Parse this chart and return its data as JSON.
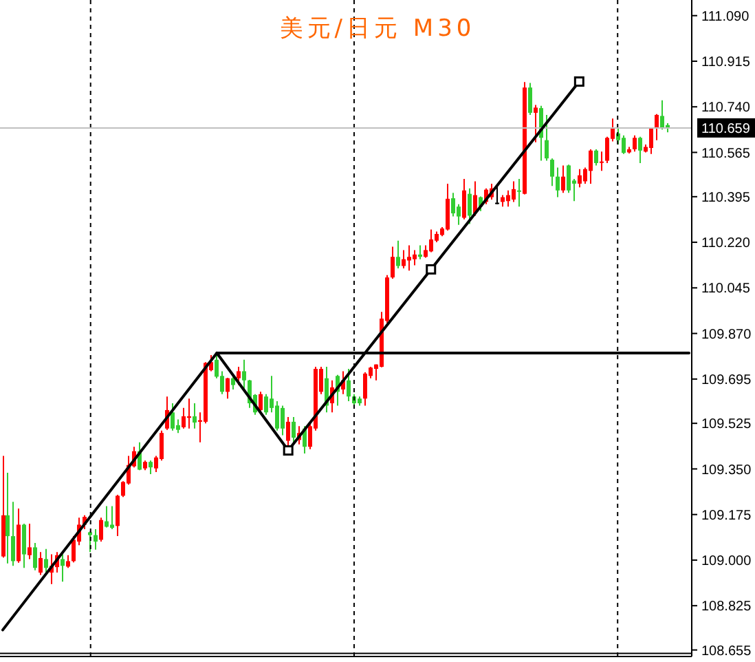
{
  "chart_data": {
    "type": "candlestick",
    "title": "美元/日元 M30",
    "categories": [
      null,
      null,
      null,
      null,
      null,
      null,
      null,
      null,
      null,
      null,
      null,
      null,
      null,
      null,
      null,
      null,
      null,
      null,
      null,
      null,
      null,
      null,
      null,
      null,
      null,
      null,
      null,
      null,
      null,
      null,
      null,
      null,
      null,
      null,
      null,
      null,
      null,
      null,
      null,
      null,
      null,
      null,
      null,
      null,
      null,
      null,
      null,
      null,
      null,
      null,
      null,
      null,
      null,
      null,
      null,
      null,
      null,
      null,
      null,
      null,
      null,
      null,
      null,
      null,
      null,
      null,
      null,
      null,
      null,
      null,
      null,
      null,
      null,
      null,
      null,
      null,
      null,
      null,
      null,
      null,
      null,
      null,
      null,
      null,
      null,
      null,
      null,
      null,
      null,
      null,
      null,
      null,
      null,
      null,
      null,
      null,
      null,
      null,
      null,
      null,
      null,
      null,
      null,
      null,
      null,
      null,
      null,
      null,
      null,
      null,
      null,
      null,
      null,
      null,
      null,
      null,
      null,
      null,
      null,
      null,
      null,
      null,
      null,
      null,
      null,
      null
    ],
    "ohlc": [
      [
        109.014,
        109.4,
        109.01,
        109.172
      ],
      [
        109.172,
        109.335,
        108.987,
        109.092
      ],
      [
        109.092,
        109.224,
        108.978,
        108.996
      ],
      [
        108.996,
        109.198,
        108.99,
        109.136
      ],
      [
        109.136,
        109.14,
        108.97,
        109.022
      ],
      [
        109.019,
        109.14,
        109.004,
        109.049
      ],
      [
        109.049,
        109.066,
        108.961,
        108.97
      ],
      [
        108.952,
        109.031,
        108.943,
        109.008
      ],
      [
        109.004,
        109.043,
        108.943,
        108.97
      ],
      [
        108.952,
        109.022,
        108.908,
        108.978
      ],
      [
        108.973,
        109.031,
        108.952,
        109.019
      ],
      [
        109.004,
        109.022,
        108.917,
        108.978
      ],
      [
        108.975,
        109.019,
        108.97,
        108.996
      ],
      [
        108.996,
        109.092,
        108.991,
        109.078
      ],
      [
        109.071,
        109.163,
        109.057,
        109.136
      ],
      [
        109.136,
        109.172,
        109.119,
        109.166
      ],
      [
        109.107,
        109.11,
        109.031,
        109.096
      ],
      [
        109.096,
        109.119,
        109.04,
        109.071
      ],
      [
        109.078,
        109.163,
        109.071,
        109.154
      ],
      [
        109.149,
        109.207,
        109.125,
        109.128
      ],
      [
        109.136,
        109.207,
        109.119,
        109.124
      ],
      [
        109.131,
        109.251,
        109.092,
        109.247
      ],
      [
        109.247,
        109.303,
        109.242,
        109.3
      ],
      [
        109.294,
        109.4,
        109.29,
        109.365
      ],
      [
        109.36,
        109.435,
        109.356,
        109.418
      ],
      [
        109.418,
        109.452,
        109.345,
        109.347
      ],
      [
        109.352,
        109.382,
        109.345,
        109.377
      ],
      [
        109.377,
        109.382,
        109.33,
        109.356
      ],
      [
        109.352,
        109.4,
        109.338,
        109.394
      ],
      [
        109.388,
        109.497,
        109.382,
        109.488
      ],
      [
        109.505,
        109.628,
        109.5,
        109.576
      ],
      [
        109.567,
        109.602,
        109.497,
        109.505
      ],
      [
        109.518,
        109.54,
        109.488,
        109.5
      ],
      [
        109.51,
        109.584,
        109.505,
        109.552
      ],
      [
        109.546,
        109.62,
        109.505,
        109.552
      ],
      [
        109.552,
        109.602,
        109.505,
        109.528
      ],
      [
        109.531,
        109.567,
        109.452,
        109.537
      ],
      [
        109.531,
        109.76,
        109.525,
        109.757
      ],
      [
        109.729,
        109.787,
        109.725,
        109.76
      ],
      [
        109.769,
        109.787,
        109.698,
        109.704
      ],
      [
        109.707,
        109.725,
        109.637,
        109.646
      ],
      [
        109.646,
        109.7,
        109.62,
        109.698
      ],
      [
        109.698,
        109.707,
        109.655,
        109.672
      ],
      [
        109.698,
        109.742,
        109.672,
        109.725
      ],
      [
        109.725,
        109.769,
        109.655,
        109.69
      ],
      [
        109.69,
        109.692,
        109.584,
        109.602
      ],
      [
        109.634,
        109.637,
        109.558,
        109.567
      ],
      [
        109.576,
        109.646,
        109.567,
        109.637
      ],
      [
        109.628,
        109.637,
        109.558,
        109.567
      ],
      [
        109.62,
        109.707,
        109.567,
        109.584
      ],
      [
        109.593,
        109.61,
        109.497,
        109.505
      ],
      [
        109.584,
        109.593,
        109.479,
        109.505
      ],
      [
        109.458,
        109.549,
        109.426,
        109.531
      ],
      [
        109.531,
        109.549,
        109.452,
        109.47
      ],
      [
        109.461,
        109.514,
        109.444,
        109.488
      ],
      [
        109.505,
        109.514,
        109.409,
        109.435
      ],
      [
        109.435,
        109.523,
        109.426,
        109.514
      ],
      [
        109.505,
        109.742,
        109.497,
        109.734
      ],
      [
        109.646,
        109.742,
        109.637,
        109.734
      ],
      [
        109.698,
        109.742,
        109.567,
        109.593
      ],
      [
        109.602,
        109.69,
        109.567,
        109.663
      ],
      [
        109.707,
        109.711,
        109.593,
        109.646
      ],
      [
        109.655,
        109.725,
        109.637,
        109.69
      ],
      [
        109.69,
        109.734,
        109.61,
        109.628
      ],
      [
        109.628,
        109.637,
        109.593,
        109.602
      ],
      [
        109.62,
        109.628,
        109.593,
        109.602
      ],
      [
        109.62,
        109.721,
        109.593,
        109.716
      ],
      [
        109.707,
        109.742,
        109.698,
        109.739
      ],
      [
        109.734,
        109.751,
        109.69,
        109.751
      ],
      [
        109.742,
        109.953,
        109.74,
        109.927
      ],
      [
        109.918,
        110.094,
        109.909,
        110.085
      ],
      [
        110.085,
        110.203,
        110.08,
        110.164
      ],
      [
        110.164,
        110.226,
        110.12,
        110.129
      ],
      [
        110.129,
        110.19,
        110.12,
        110.155
      ],
      [
        110.15,
        110.208,
        110.111,
        110.164
      ],
      [
        110.155,
        110.19,
        110.132,
        110.173
      ],
      [
        110.173,
        110.208,
        110.155,
        110.164
      ],
      [
        110.164,
        110.208,
        110.161,
        110.19
      ],
      [
        110.185,
        110.269,
        110.182,
        110.231
      ],
      [
        110.226,
        110.261,
        110.22,
        110.252
      ],
      [
        110.248,
        110.278,
        110.243,
        110.273
      ],
      [
        110.269,
        110.445,
        110.265,
        110.387
      ],
      [
        110.389,
        110.41,
        110.319,
        110.331
      ],
      [
        110.357,
        110.366,
        110.287,
        110.319
      ],
      [
        110.314,
        110.463,
        110.308,
        110.419
      ],
      [
        110.406,
        110.427,
        110.29,
        110.322
      ],
      [
        110.331,
        110.454,
        110.322,
        110.401
      ],
      [
        110.393,
        110.396,
        110.34,
        110.357
      ],
      [
        110.375,
        110.427,
        110.366,
        110.422
      ],
      [
        110.393,
        110.445,
        110.384,
        110.427
      ],
      [
        110.372,
        110.436,
        110.366,
        110.372
      ],
      [
        110.375,
        110.401,
        110.357,
        110.393
      ],
      [
        110.378,
        110.419,
        110.357,
        110.401
      ],
      [
        110.384,
        110.454,
        110.375,
        110.424
      ],
      [
        110.419,
        110.463,
        110.357,
        110.414
      ],
      [
        110.406,
        110.835,
        110.404,
        110.814
      ],
      [
        110.814,
        110.832,
        110.709,
        110.717
      ],
      [
        110.717,
        110.747,
        110.604,
        110.737
      ],
      [
        110.735,
        110.744,
        110.533,
        110.621
      ],
      [
        110.612,
        110.709,
        110.533,
        110.542
      ],
      [
        110.537,
        110.542,
        110.436,
        110.472
      ],
      [
        110.472,
        110.507,
        110.393,
        110.419
      ],
      [
        110.419,
        110.515,
        110.41,
        110.472
      ],
      [
        110.515,
        110.518,
        110.41,
        110.419
      ],
      [
        110.457,
        110.463,
        110.378,
        110.445
      ],
      [
        110.445,
        110.501,
        110.431,
        110.477
      ],
      [
        110.454,
        110.507,
        110.445,
        110.501
      ],
      [
        110.494,
        110.577,
        110.445,
        110.572
      ],
      [
        110.572,
        110.577,
        110.515,
        110.524
      ],
      [
        110.526,
        110.568,
        110.494,
        110.53
      ],
      [
        110.533,
        110.625,
        110.524,
        110.621
      ],
      [
        110.617,
        110.695,
        110.607,
        110.659
      ],
      [
        110.638,
        110.656,
        110.595,
        110.612
      ],
      [
        110.621,
        110.63,
        110.559,
        110.563
      ],
      [
        110.565,
        110.586,
        110.561,
        110.577
      ],
      [
        110.577,
        110.63,
        110.568,
        110.621
      ],
      [
        110.621,
        110.625,
        110.524,
        110.572
      ],
      [
        110.568,
        110.595,
        110.565,
        110.586
      ],
      [
        110.582,
        110.659,
        110.559,
        110.656
      ],
      [
        110.656,
        110.712,
        110.612,
        110.709
      ],
      [
        110.705,
        110.765,
        110.653,
        110.656
      ],
      [
        110.67,
        110.677,
        110.642,
        110.659
      ],
      null,
      null,
      null,
      null
    ],
    "colors": [
      "#ff0000",
      "#32cd32",
      "#32cd32",
      "#ff0000",
      "#32cd32",
      "#ff0000",
      "#32cd32",
      "#ff0000",
      "#32cd32",
      "#ff0000",
      "#ff0000",
      "#32cd32",
      "#ff0000",
      "#ff0000",
      "#ff0000",
      "#ff0000",
      "#32cd32",
      "#32cd32",
      "#ff0000",
      "#32cd32",
      "#32cd32",
      "#ff0000",
      "#ff0000",
      "#ff0000",
      "#ff0000",
      "#32cd32",
      "#ff0000",
      "#32cd32",
      "#ff0000",
      "#ff0000",
      "#ff0000",
      "#32cd32",
      "#32cd32",
      "#ff0000",
      "#ff0000",
      "#32cd32",
      "#ff0000",
      "#ff0000",
      "#ff0000",
      "#32cd32",
      "#32cd32",
      "#ff0000",
      "#32cd32",
      "#ff0000",
      "#32cd32",
      "#32cd32",
      "#32cd32",
      "#ff0000",
      "#32cd32",
      "#32cd32",
      "#32cd32",
      "#32cd32",
      "#ff0000",
      "#32cd32",
      "#ff0000",
      "#32cd32",
      "#ff0000",
      "#ff0000",
      "#ff0000",
      "#32cd32",
      "#ff0000",
      "#32cd32",
      "#ff0000",
      "#32cd32",
      "#32cd32",
      "#32cd32",
      "#ff0000",
      "#ff0000",
      "#ff0000",
      "#ff0000",
      "#ff0000",
      "#ff0000",
      "#32cd32",
      "#ff0000",
      "#ff0000",
      "#ff0000",
      "#32cd32",
      "#ff0000",
      "#ff0000",
      "#ff0000",
      "#ff0000",
      "#ff0000",
      "#32cd32",
      "#32cd32",
      "#ff0000",
      "#32cd32",
      "#ff0000",
      "#32cd32",
      "#ff0000",
      "#ff0000",
      "#000000",
      "#ff0000",
      "#ff0000",
      "#ff0000",
      "#32cd32",
      "#ff0000",
      "#32cd32",
      "#ff0000",
      "#32cd32",
      "#32cd32",
      "#32cd32",
      "#32cd32",
      "#ff0000",
      "#32cd32",
      "#32cd32",
      "#ff0000",
      "#ff0000",
      "#ff0000",
      "#32cd32",
      "#ff0000",
      "#ff0000",
      "#ff0000",
      "#32cd32",
      "#32cd32",
      "#ff0000",
      "#ff0000",
      "#32cd32",
      "#ff0000",
      "#ff0000",
      "#ff0000",
      "#32cd32",
      "#32cd32",
      null,
      null,
      null,
      null
    ],
    "series": [
      {
        "type": "line",
        "color": "#000000",
        "values": [
          108.732,
          null,
          null,
          null,
          null,
          null,
          null,
          null,
          null,
          null,
          null,
          null,
          null,
          null,
          null,
          null,
          null,
          null,
          null,
          null,
          null,
          null,
          null,
          null,
          null,
          null,
          null,
          null,
          null,
          null,
          null,
          null,
          null,
          null,
          null,
          null,
          null,
          null,
          null,
          109.795,
          null,
          null,
          null,
          null,
          null,
          null,
          null,
          null,
          null,
          null,
          null,
          null,
          109.421,
          null,
          null,
          null,
          null,
          null,
          null,
          null,
          null,
          null,
          null,
          null,
          null,
          null,
          null,
          null,
          null,
          null,
          null,
          null,
          null,
          null,
          null,
          null,
          null,
          null,
          null,
          null,
          null,
          null,
          null,
          null,
          null,
          null,
          null,
          null,
          null,
          null,
          null,
          null,
          null,
          null,
          null,
          null,
          null,
          null,
          null,
          null,
          null,
          null,
          null,
          null,
          null,
          null,
          null,
          null,
          null,
          null,
          null,
          null,
          null,
          null,
          null,
          null,
          null,
          null,
          null,
          null,
          null,
          null,
          null,
          null,
          null,
          null
        ]
      },
      {
        "type": "line",
        "color": "#000000",
        "marker": "square",
        "values": [
          null,
          null,
          null,
          null,
          null,
          null,
          null,
          null,
          null,
          null,
          null,
          null,
          null,
          null,
          null,
          null,
          null,
          null,
          null,
          null,
          null,
          null,
          null,
          null,
          null,
          null,
          null,
          null,
          null,
          null,
          null,
          null,
          null,
          null,
          null,
          null,
          null,
          null,
          null,
          null,
          null,
          null,
          null,
          null,
          null,
          null,
          null,
          null,
          null,
          null,
          null,
          null,
          109.421,
          null,
          null,
          null,
          null,
          null,
          null,
          null,
          null,
          null,
          null,
          null,
          null,
          null,
          null,
          null,
          null,
          null,
          null,
          null,
          null,
          null,
          null,
          null,
          null,
          null,
          110.116,
          null,
          null,
          null,
          null,
          null,
          null,
          null,
          null,
          null,
          null,
          null,
          null,
          null,
          null,
          null,
          null,
          null,
          null,
          null,
          null,
          null,
          null,
          null,
          null,
          null,
          null,
          110.837,
          null,
          null,
          null,
          null,
          null,
          null,
          null,
          null,
          null,
          null,
          null,
          null,
          null,
          null,
          null,
          null,
          null,
          null,
          null,
          null
        ]
      },
      {
        "type": "line",
        "color": "#000000",
        "values": [
          null,
          null,
          null,
          null,
          null,
          null,
          null,
          null,
          null,
          null,
          null,
          null,
          null,
          null,
          null,
          null,
          null,
          null,
          null,
          null,
          null,
          null,
          null,
          null,
          null,
          null,
          null,
          null,
          null,
          null,
          null,
          null,
          null,
          null,
          null,
          null,
          null,
          null,
          null,
          109.795,
          null,
          null,
          null,
          null,
          null,
          null,
          null,
          null,
          null,
          null,
          null,
          null,
          null,
          null,
          null,
          null,
          null,
          null,
          null,
          null,
          null,
          null,
          null,
          null,
          null,
          null,
          null,
          null,
          null,
          null,
          null,
          null,
          null,
          null,
          null,
          null,
          null,
          null,
          null,
          null,
          null,
          null,
          null,
          null,
          null,
          null,
          null,
          null,
          null,
          null,
          null,
          null,
          null,
          null,
          null,
          null,
          null,
          null,
          null,
          null,
          null,
          null,
          null,
          null,
          null,
          null,
          null,
          null,
          null,
          null,
          null,
          null,
          null,
          null,
          null,
          null,
          null,
          null,
          null,
          null,
          null,
          null,
          null,
          null,
          null,
          109.795
        ]
      }
    ],
    "ylim": [
      108.63,
      111.15
    ],
    "yticks": [
      {
        "value": 111.09,
        "label": "111.090"
      },
      {
        "value": 110.915,
        "label": "110.915"
      },
      {
        "value": 110.74,
        "label": "110.740"
      },
      {
        "value": 110.565,
        "label": "110.565"
      },
      {
        "value": 110.395,
        "label": "110.395"
      },
      {
        "value": 110.22,
        "label": "110.220"
      },
      {
        "value": 110.045,
        "label": "110.045"
      },
      {
        "value": 109.87,
        "label": "109.870"
      },
      {
        "value": 109.695,
        "label": "109.695"
      },
      {
        "value": 109.525,
        "label": "109.525"
      },
      {
        "value": 109.35,
        "label": "109.350"
      },
      {
        "value": 109.175,
        "label": "109.175"
      },
      {
        "value": 109.0,
        "label": "109.000"
      },
      {
        "value": 108.825,
        "label": "108.825"
      },
      {
        "value": 108.655,
        "label": "108.655"
      }
    ],
    "ref_lines": [
      {
        "axis": "y",
        "value": 110.659,
        "label": "110.659",
        "color": "#c0c0c0"
      },
      {
        "axis": "y",
        "value": 108.642,
        "color": "#000000"
      }
    ],
    "tick_labels": "y"
  }
}
